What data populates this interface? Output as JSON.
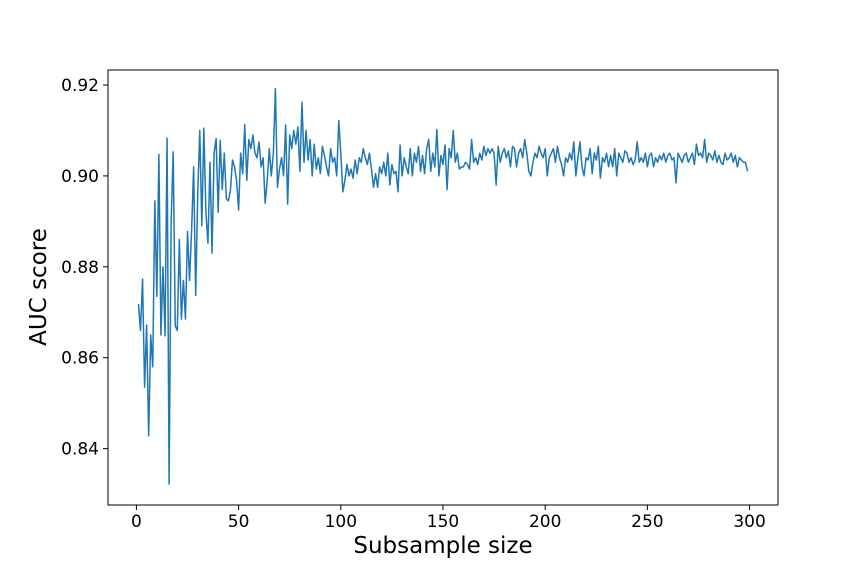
{
  "chart_data": {
    "type": "line",
    "x_label": "Subsample size",
    "y_label": "AUC score",
    "xlim": [
      -13.9,
      313.9
    ],
    "ylim": [
      0.8276,
      0.9233
    ],
    "xticks": [
      0,
      50,
      100,
      150,
      200,
      250,
      300
    ],
    "yticks": [
      0.84,
      0.86,
      0.88,
      {
        "value": 0.9,
        "label": "0.90"
      },
      0.92
    ],
    "grid": false,
    "series": [
      {
        "color": "#1f77b4",
        "x": [
          1,
          2,
          3,
          4,
          5,
          6,
          7,
          8,
          9,
          10,
          11,
          12,
          13,
          14,
          15,
          16,
          17,
          18,
          19,
          20,
          21,
          22,
          23,
          24,
          25,
          26,
          27,
          28,
          29,
          30,
          31,
          32,
          33,
          34,
          35,
          36,
          37,
          38,
          39,
          40,
          41,
          42,
          43,
          44,
          45,
          46,
          47,
          48,
          49,
          50,
          51,
          52,
          53,
          54,
          55,
          56,
          57,
          58,
          59,
          60,
          61,
          62,
          63,
          64,
          65,
          66,
          67,
          68,
          69,
          70,
          71,
          72,
          73,
          74,
          75,
          76,
          77,
          78,
          79,
          80,
          81,
          82,
          83,
          84,
          85,
          86,
          87,
          88,
          89,
          90,
          91,
          92,
          93,
          94,
          95,
          96,
          97,
          98,
          99,
          100,
          101,
          102,
          103,
          104,
          105,
          106,
          107,
          108,
          109,
          110,
          111,
          112,
          113,
          114,
          115,
          116,
          117,
          118,
          119,
          120,
          121,
          122,
          123,
          124,
          125,
          126,
          127,
          128,
          129,
          130,
          131,
          132,
          133,
          134,
          135,
          136,
          137,
          138,
          139,
          140,
          141,
          142,
          143,
          144,
          145,
          146,
          147,
          148,
          149,
          150,
          151,
          152,
          153,
          154,
          155,
          156,
          157,
          158,
          159,
          160,
          161,
          162,
          163,
          164,
          165,
          166,
          167,
          168,
          169,
          170,
          171,
          172,
          173,
          174,
          175,
          176,
          177,
          178,
          179,
          180,
          181,
          182,
          183,
          184,
          185,
          186,
          187,
          188,
          189,
          190,
          191,
          192,
          193,
          194,
          195,
          196,
          197,
          198,
          199,
          200,
          201,
          202,
          203,
          204,
          205,
          206,
          207,
          208,
          209,
          210,
          211,
          212,
          213,
          214,
          215,
          216,
          217,
          218,
          219,
          220,
          221,
          222,
          223,
          224,
          225,
          226,
          227,
          228,
          229,
          230,
          231,
          232,
          233,
          234,
          235,
          236,
          237,
          238,
          239,
          240,
          241,
          242,
          243,
          244,
          245,
          246,
          247,
          248,
          249,
          250,
          251,
          252,
          253,
          254,
          255,
          256,
          257,
          258,
          259,
          260,
          261,
          262,
          263,
          264,
          265,
          266,
          267,
          268,
          269,
          270,
          271,
          272,
          273,
          274,
          275,
          276,
          277,
          278,
          279,
          280,
          281,
          282,
          283,
          284,
          285,
          286,
          287,
          288,
          289,
          290,
          291,
          292,
          293,
          294,
          295,
          296,
          297,
          298,
          299
        ],
        "values": [
          0.8718,
          0.866,
          0.8773,
          0.8535,
          0.8672,
          0.8428,
          0.865,
          0.858,
          0.8945,
          0.8735,
          0.9047,
          0.865,
          0.88,
          0.8648,
          0.9083,
          0.8322,
          0.89,
          0.9053,
          0.867,
          0.866,
          0.886,
          0.8685,
          0.877,
          0.8685,
          0.8878,
          0.877,
          0.888,
          0.902,
          0.8737,
          0.896,
          0.91,
          0.889,
          0.9105,
          0.892,
          0.8852,
          0.903,
          0.883,
          0.905,
          0.9082,
          0.892,
          0.9078,
          0.897,
          0.905,
          0.895,
          0.8945,
          0.8968,
          0.9035,
          0.902,
          0.899,
          0.8925,
          0.905,
          0.9005,
          0.9113,
          0.899,
          0.908,
          0.906,
          0.909,
          0.905,
          0.904,
          0.9075,
          0.902,
          0.904,
          0.894,
          0.899,
          0.906,
          0.9,
          0.905,
          0.9192,
          0.8975,
          0.9015,
          0.904,
          0.9,
          0.9112,
          0.8938,
          0.909,
          0.906,
          0.91,
          0.907,
          0.9108,
          0.901,
          0.9162,
          0.903,
          0.91,
          0.9035,
          0.908,
          0.9,
          0.907,
          0.9015,
          0.904,
          0.9005,
          0.9065,
          0.9045,
          0.902,
          0.9,
          0.906,
          0.903,
          0.904,
          0.9,
          0.9122,
          0.905,
          0.8965,
          0.899,
          0.9025,
          0.9,
          0.9015,
          0.8995,
          0.9035,
          0.9005,
          0.904,
          0.903,
          0.906,
          0.904,
          0.9025,
          0.905,
          0.9015,
          0.8975,
          0.9005,
          0.8975,
          0.902,
          0.9005,
          0.903,
          0.9,
          0.905,
          0.898,
          0.9025,
          0.9005,
          0.901,
          0.8965,
          0.9068,
          0.9,
          0.904,
          0.902,
          0.9005,
          0.906,
          0.9,
          0.905,
          0.903,
          0.9065,
          0.901,
          0.9045,
          0.9005,
          0.906,
          0.908,
          0.901,
          0.905,
          0.902,
          0.9102,
          0.9,
          0.9045,
          0.9025,
          0.9068,
          0.897,
          0.906,
          0.904,
          0.91,
          0.903,
          0.905,
          0.9015,
          0.902,
          0.902,
          0.903,
          0.9025,
          0.9015,
          0.908,
          0.903,
          0.904,
          0.9025,
          0.905,
          0.9035,
          0.9065,
          0.9045,
          0.906,
          0.905,
          0.906,
          0.905,
          0.898,
          0.9065,
          0.903,
          0.905,
          0.906,
          0.904,
          0.9055,
          0.902,
          0.9065,
          0.906,
          0.902,
          0.905,
          0.906,
          0.904,
          0.908,
          0.905,
          0.901,
          0.9,
          0.903,
          0.905,
          0.904,
          0.9065,
          0.905,
          0.904,
          0.906,
          0.9,
          0.904,
          0.905,
          0.906,
          0.903,
          0.9065,
          0.904,
          0.9025,
          0.9,
          0.904,
          0.903,
          0.905,
          0.9035,
          0.9075,
          0.9,
          0.904,
          0.9075,
          0.902,
          0.9,
          0.904,
          0.9035,
          0.906,
          0.9005,
          0.905,
          0.9035,
          0.9065,
          0.8995,
          0.904,
          0.903,
          0.905,
          0.902,
          0.9045,
          0.902,
          0.906,
          0.9,
          0.905,
          0.904,
          0.903,
          0.9055,
          0.905,
          0.903,
          0.904,
          0.9025,
          0.9035,
          0.9075,
          0.903,
          0.904,
          0.903,
          0.905,
          0.902,
          0.9045,
          0.905,
          0.902,
          0.904,
          0.903,
          0.9045,
          0.9035,
          0.905,
          0.903,
          0.9045,
          0.905,
          0.9035,
          0.904,
          0.8985,
          0.905,
          0.904,
          0.903,
          0.9045,
          0.905,
          0.903,
          0.904,
          0.905,
          0.9025,
          0.907,
          0.9045,
          0.905,
          0.904,
          0.908,
          0.903,
          0.905,
          0.9045,
          0.9035,
          0.9055,
          0.903,
          0.9045,
          0.903,
          0.9025,
          0.905,
          0.9035,
          0.904,
          0.905,
          0.903,
          0.9045,
          0.902,
          0.904,
          0.9035,
          0.903,
          0.903,
          0.901
        ]
      }
    ]
  }
}
